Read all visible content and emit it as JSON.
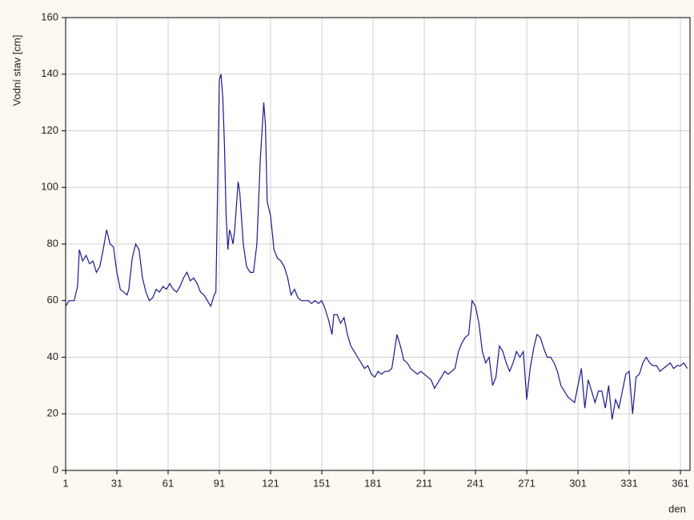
{
  "chart_data": {
    "type": "line",
    "xlabel": "den",
    "ylabel": "Vodní stav [cm]",
    "xlim": [
      1,
      366.6
    ],
    "ylim": [
      0,
      160
    ],
    "xticks": [
      1,
      31,
      61,
      91,
      121,
      151,
      181,
      211,
      241,
      271,
      301,
      331,
      361
    ],
    "yticks": [
      0,
      20,
      40,
      60,
      80,
      100,
      120,
      140,
      160
    ],
    "grid": true,
    "series": [
      {
        "color": "#1a1a8c",
        "x": [
          1,
          3,
          6,
          8,
          9,
          11,
          13,
          15,
          17,
          19,
          21,
          23,
          25,
          27,
          29,
          31,
          33,
          35,
          37,
          38,
          40,
          42,
          44,
          46,
          48,
          50,
          52,
          54,
          56,
          58,
          60,
          62,
          64,
          66,
          68,
          70,
          72,
          74,
          76,
          78,
          80,
          82,
          84,
          86,
          88,
          89,
          90,
          91,
          92,
          93,
          94,
          95,
          96,
          97,
          98,
          99,
          100,
          102,
          103,
          105,
          107,
          109,
          111,
          113,
          115,
          116,
          117,
          118,
          119,
          121,
          123,
          125,
          127,
          129,
          131,
          133,
          135,
          137,
          139,
          141,
          143,
          145,
          147,
          149,
          151,
          153,
          155,
          157,
          158,
          160,
          162,
          164,
          166,
          168,
          170,
          172,
          174,
          176,
          178,
          180,
          182,
          184,
          186,
          188,
          190,
          192,
          194,
          195,
          197,
          199,
          201,
          203,
          205,
          207,
          209,
          211,
          213,
          215,
          217,
          219,
          221,
          223,
          225,
          227,
          229,
          231,
          233,
          235,
          237,
          239,
          241,
          243,
          245,
          247,
          249,
          251,
          253,
          255,
          257,
          259,
          261,
          263,
          265,
          267,
          269,
          271,
          273,
          275,
          277,
          279,
          281,
          283,
          285,
          287,
          289,
          291,
          293,
          295,
          297,
          299,
          301,
          303,
          305,
          307,
          309,
          311,
          313,
          315,
          317,
          319,
          321,
          323,
          325,
          327,
          329,
          331,
          333,
          335,
          337,
          339,
          341,
          343,
          345,
          347,
          349,
          351,
          353,
          355,
          357,
          359,
          361,
          363,
          365
        ],
        "values": [
          58,
          60,
          60,
          65,
          78,
          74,
          76,
          73,
          74,
          70,
          72,
          78,
          85,
          80,
          79,
          70,
          64,
          63,
          62,
          64,
          75,
          80,
          78,
          68,
          63,
          60,
          61,
          64,
          63,
          65,
          64,
          66,
          64,
          63,
          65,
          68,
          70,
          67,
          68,
          66,
          63,
          62,
          60,
          58,
          62,
          63,
          100,
          138,
          140,
          132,
          115,
          90,
          78,
          85,
          83,
          80,
          85,
          102,
          98,
          80,
          72,
          70,
          70,
          80,
          110,
          120,
          130,
          122,
          95,
          90,
          78,
          75,
          74,
          72,
          68,
          62,
          64,
          61,
          60,
          60,
          60,
          59,
          60,
          59,
          60,
          57,
          53,
          48,
          55,
          55,
          52,
          54,
          48,
          44,
          42,
          40,
          38,
          36,
          37,
          34,
          33,
          35,
          34,
          35,
          35,
          36,
          44,
          48,
          44,
          39,
          38,
          36,
          35,
          34,
          35,
          34,
          33,
          32,
          29,
          31,
          33,
          35,
          34,
          35,
          36,
          42,
          45,
          47,
          48,
          60,
          58,
          52,
          42,
          38,
          40,
          30,
          33,
          44,
          42,
          38,
          35,
          38,
          42,
          40,
          42,
          25,
          36,
          43,
          48,
          47,
          43,
          40,
          40,
          38,
          35,
          30,
          28,
          26,
          25,
          24,
          30,
          36,
          22,
          32,
          28,
          24,
          28,
          28,
          22,
          30,
          18,
          25,
          22,
          28,
          34,
          35,
          20,
          33,
          34,
          38,
          40,
          38,
          37,
          37,
          35,
          36,
          37,
          38,
          36,
          37,
          37,
          38,
          36
        ]
      }
    ]
  }
}
